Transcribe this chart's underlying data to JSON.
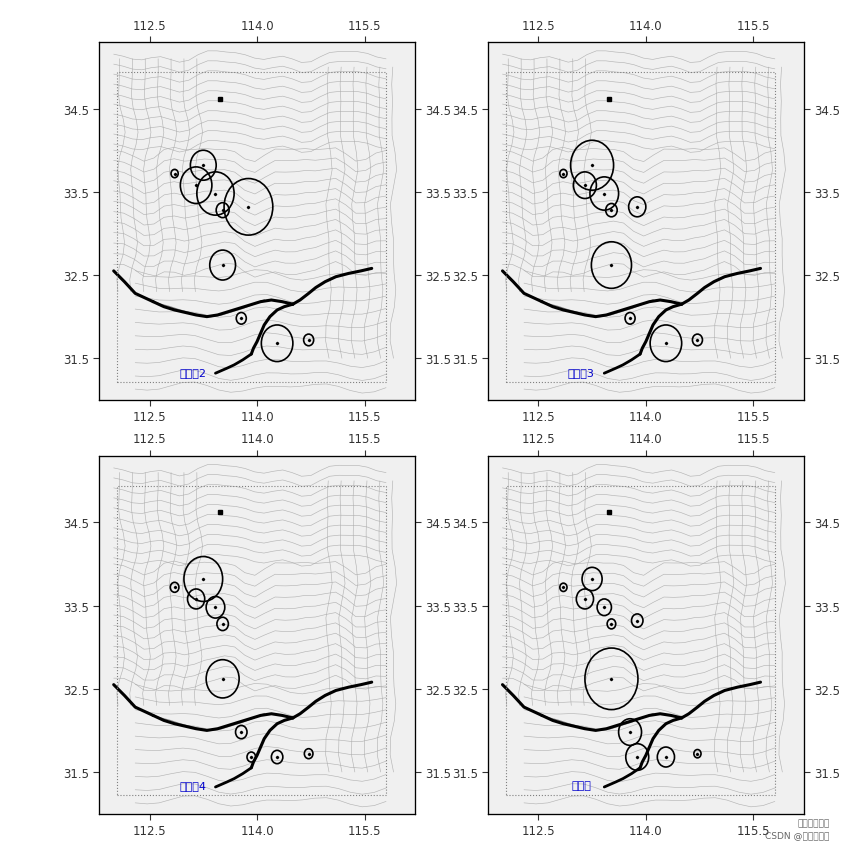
{
  "xlim": [
    111.8,
    116.2
  ],
  "ylim": [
    31.0,
    35.3
  ],
  "map_xlim": [
    112.0,
    116.0
  ],
  "map_ylim": [
    31.1,
    35.1
  ],
  "xticks": [
    112.5,
    114.0,
    115.5
  ],
  "yticks": [
    31.5,
    32.5,
    33.5,
    34.5
  ],
  "background_color": "#ffffff",
  "tick_color": "#333333",
  "tick_fontsize": 8.5,
  "panels": [
    {
      "label": "行际素2",
      "reservoirs": [
        {
          "lon": 112.85,
          "lat": 33.72,
          "size": 0.05
        },
        {
          "lon": 113.25,
          "lat": 33.82,
          "size": 0.18
        },
        {
          "lon": 113.15,
          "lat": 33.58,
          "size": 0.22
        },
        {
          "lon": 113.42,
          "lat": 33.48,
          "size": 0.26
        },
        {
          "lon": 113.88,
          "lat": 33.32,
          "size": 0.34
        },
        {
          "lon": 113.52,
          "lat": 33.28,
          "size": 0.09
        },
        {
          "lon": 113.52,
          "lat": 32.62,
          "size": 0.18
        },
        {
          "lon": 113.78,
          "lat": 31.98,
          "size": 0.07
        },
        {
          "lon": 114.28,
          "lat": 31.68,
          "size": 0.22
        },
        {
          "lon": 114.72,
          "lat": 31.72,
          "size": 0.07
        }
      ]
    },
    {
      "label": "行际素3",
      "reservoirs": [
        {
          "lon": 112.85,
          "lat": 33.72,
          "size": 0.05
        },
        {
          "lon": 113.25,
          "lat": 33.82,
          "size": 0.3
        },
        {
          "lon": 113.15,
          "lat": 33.58,
          "size": 0.16
        },
        {
          "lon": 113.42,
          "lat": 33.48,
          "size": 0.2
        },
        {
          "lon": 113.88,
          "lat": 33.32,
          "size": 0.12
        },
        {
          "lon": 113.52,
          "lat": 33.28,
          "size": 0.08
        },
        {
          "lon": 113.52,
          "lat": 32.62,
          "size": 0.28
        },
        {
          "lon": 113.78,
          "lat": 31.98,
          "size": 0.07
        },
        {
          "lon": 114.28,
          "lat": 31.68,
          "size": 0.22
        },
        {
          "lon": 114.72,
          "lat": 31.72,
          "size": 0.07
        }
      ]
    },
    {
      "label": "行际素4",
      "reservoirs": [
        {
          "lon": 112.85,
          "lat": 33.72,
          "size": 0.06
        },
        {
          "lon": 113.25,
          "lat": 33.82,
          "size": 0.27
        },
        {
          "lon": 113.15,
          "lat": 33.58,
          "size": 0.12
        },
        {
          "lon": 113.42,
          "lat": 33.48,
          "size": 0.13
        },
        {
          "lon": 113.52,
          "lat": 33.28,
          "size": 0.08
        },
        {
          "lon": 113.52,
          "lat": 32.62,
          "size": 0.23
        },
        {
          "lon": 113.78,
          "lat": 31.98,
          "size": 0.08
        },
        {
          "lon": 113.92,
          "lat": 31.68,
          "size": 0.06
        },
        {
          "lon": 114.28,
          "lat": 31.68,
          "size": 0.08
        },
        {
          "lon": 114.72,
          "lat": 31.72,
          "size": 0.06
        }
      ]
    },
    {
      "label": "混密度",
      "reservoirs": [
        {
          "lon": 112.85,
          "lat": 33.72,
          "size": 0.05
        },
        {
          "lon": 113.25,
          "lat": 33.82,
          "size": 0.14
        },
        {
          "lon": 113.15,
          "lat": 33.58,
          "size": 0.12
        },
        {
          "lon": 113.42,
          "lat": 33.48,
          "size": 0.1
        },
        {
          "lon": 113.88,
          "lat": 33.32,
          "size": 0.08
        },
        {
          "lon": 113.52,
          "lat": 33.28,
          "size": 0.06
        },
        {
          "lon": 113.52,
          "lat": 32.62,
          "size": 0.37
        },
        {
          "lon": 113.78,
          "lat": 31.98,
          "size": 0.16
        },
        {
          "lon": 113.88,
          "lat": 31.68,
          "size": 0.16
        },
        {
          "lon": 114.28,
          "lat": 31.68,
          "size": 0.12
        },
        {
          "lon": 114.72,
          "lat": 31.72,
          "size": 0.05
        }
      ]
    }
  ],
  "square_lon": 113.48,
  "square_lat": 34.62,
  "label_color": "#0000cc",
  "label_fontsize": 8,
  "circle_lw": 1.2,
  "watermark_line1": "拓端数据部落",
  "watermark_line2": "CSDN @拓端研究室"
}
